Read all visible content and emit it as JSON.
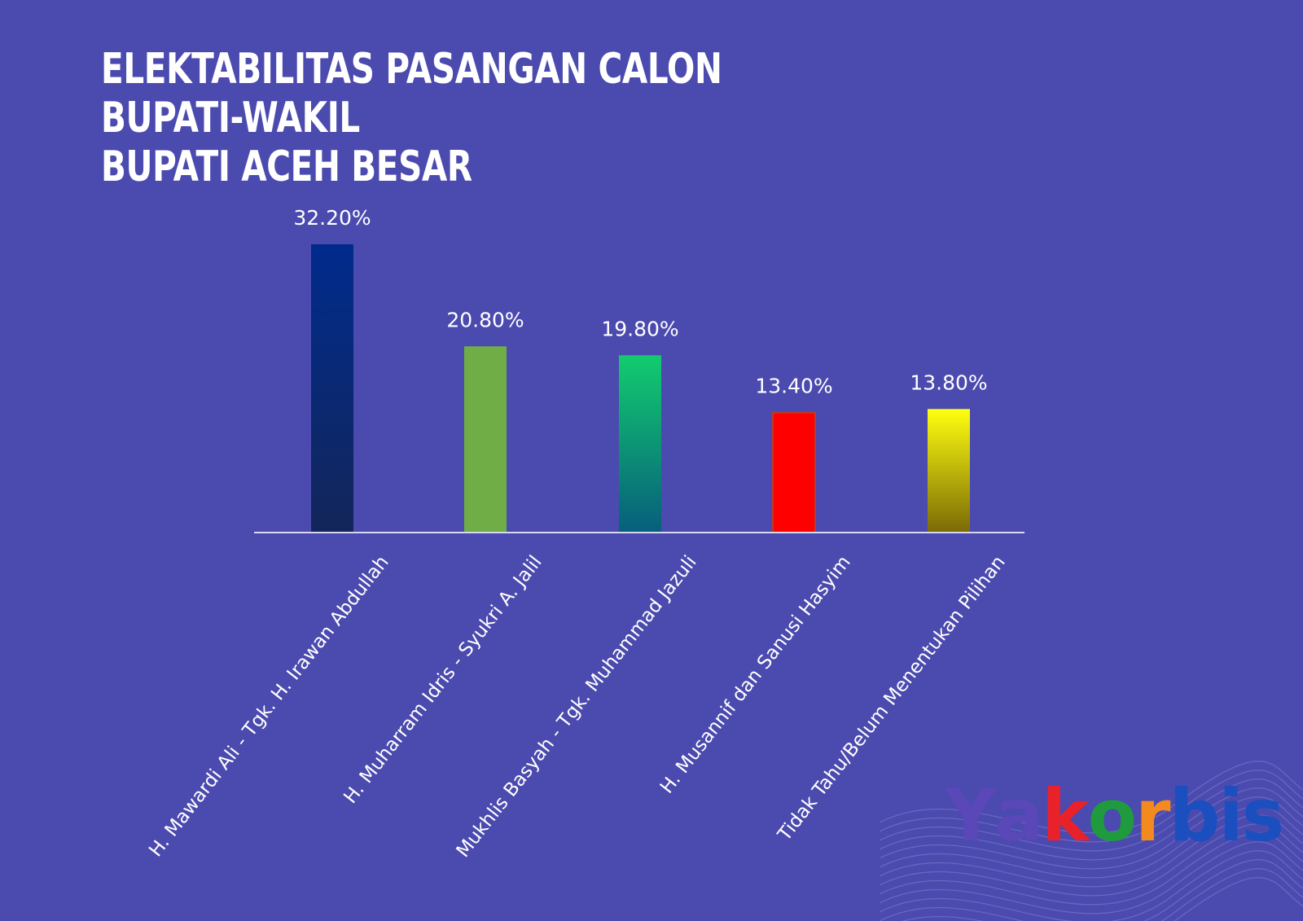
{
  "title": {
    "line1": "ELEKTABILITAS PASANGAN CALON BUPATI-WAKIL",
    "line2": "BUPATI ACEH BESAR"
  },
  "brand": {
    "letters": [
      "Y",
      "a",
      "k",
      "o",
      "r",
      "b",
      "i",
      "s"
    ],
    "colors": [
      "#5a47b8",
      "#5a47b8",
      "#e8212b",
      "#1f9a3e",
      "#f28a1f",
      "#1b4fbf",
      "#1b4fbf",
      "#1b4fbf"
    ]
  },
  "chart_data": {
    "type": "bar",
    "title": "ELEKTABILITAS PASANGAN CALON BUPATI-WAKIL BUPATI ACEH BESAR",
    "xlabel": "",
    "ylabel": "",
    "ylim": [
      0,
      35
    ],
    "grid": false,
    "legend": "none",
    "categories": [
      "H. Mawardi Ali - Tgk. H. Irawan Abdullah",
      "H. Muharram Idris - Syukri A. Jalil",
      "Mukhlis Basyah - Tgk. Muhammad Jazuli",
      "H. Musannif dan Sanusi Hasyim",
      "Tidak Tahu/Belum Menentukan Pilihan"
    ],
    "values": [
      32.2,
      20.8,
      19.8,
      13.4,
      13.8
    ],
    "labels": [
      "32.20%",
      "20.80%",
      "19.80%",
      "13.40%",
      "13.80%"
    ],
    "bar_colors": [
      [
        "#002b8c",
        "#13265a"
      ],
      [
        "#70ad47",
        "#70ad47"
      ],
      [
        "#12cc6e",
        "#075e7c"
      ],
      [
        "#ff0000",
        "#ff0000"
      ],
      [
        "#ffff10",
        "#7a6a05"
      ]
    ]
  }
}
